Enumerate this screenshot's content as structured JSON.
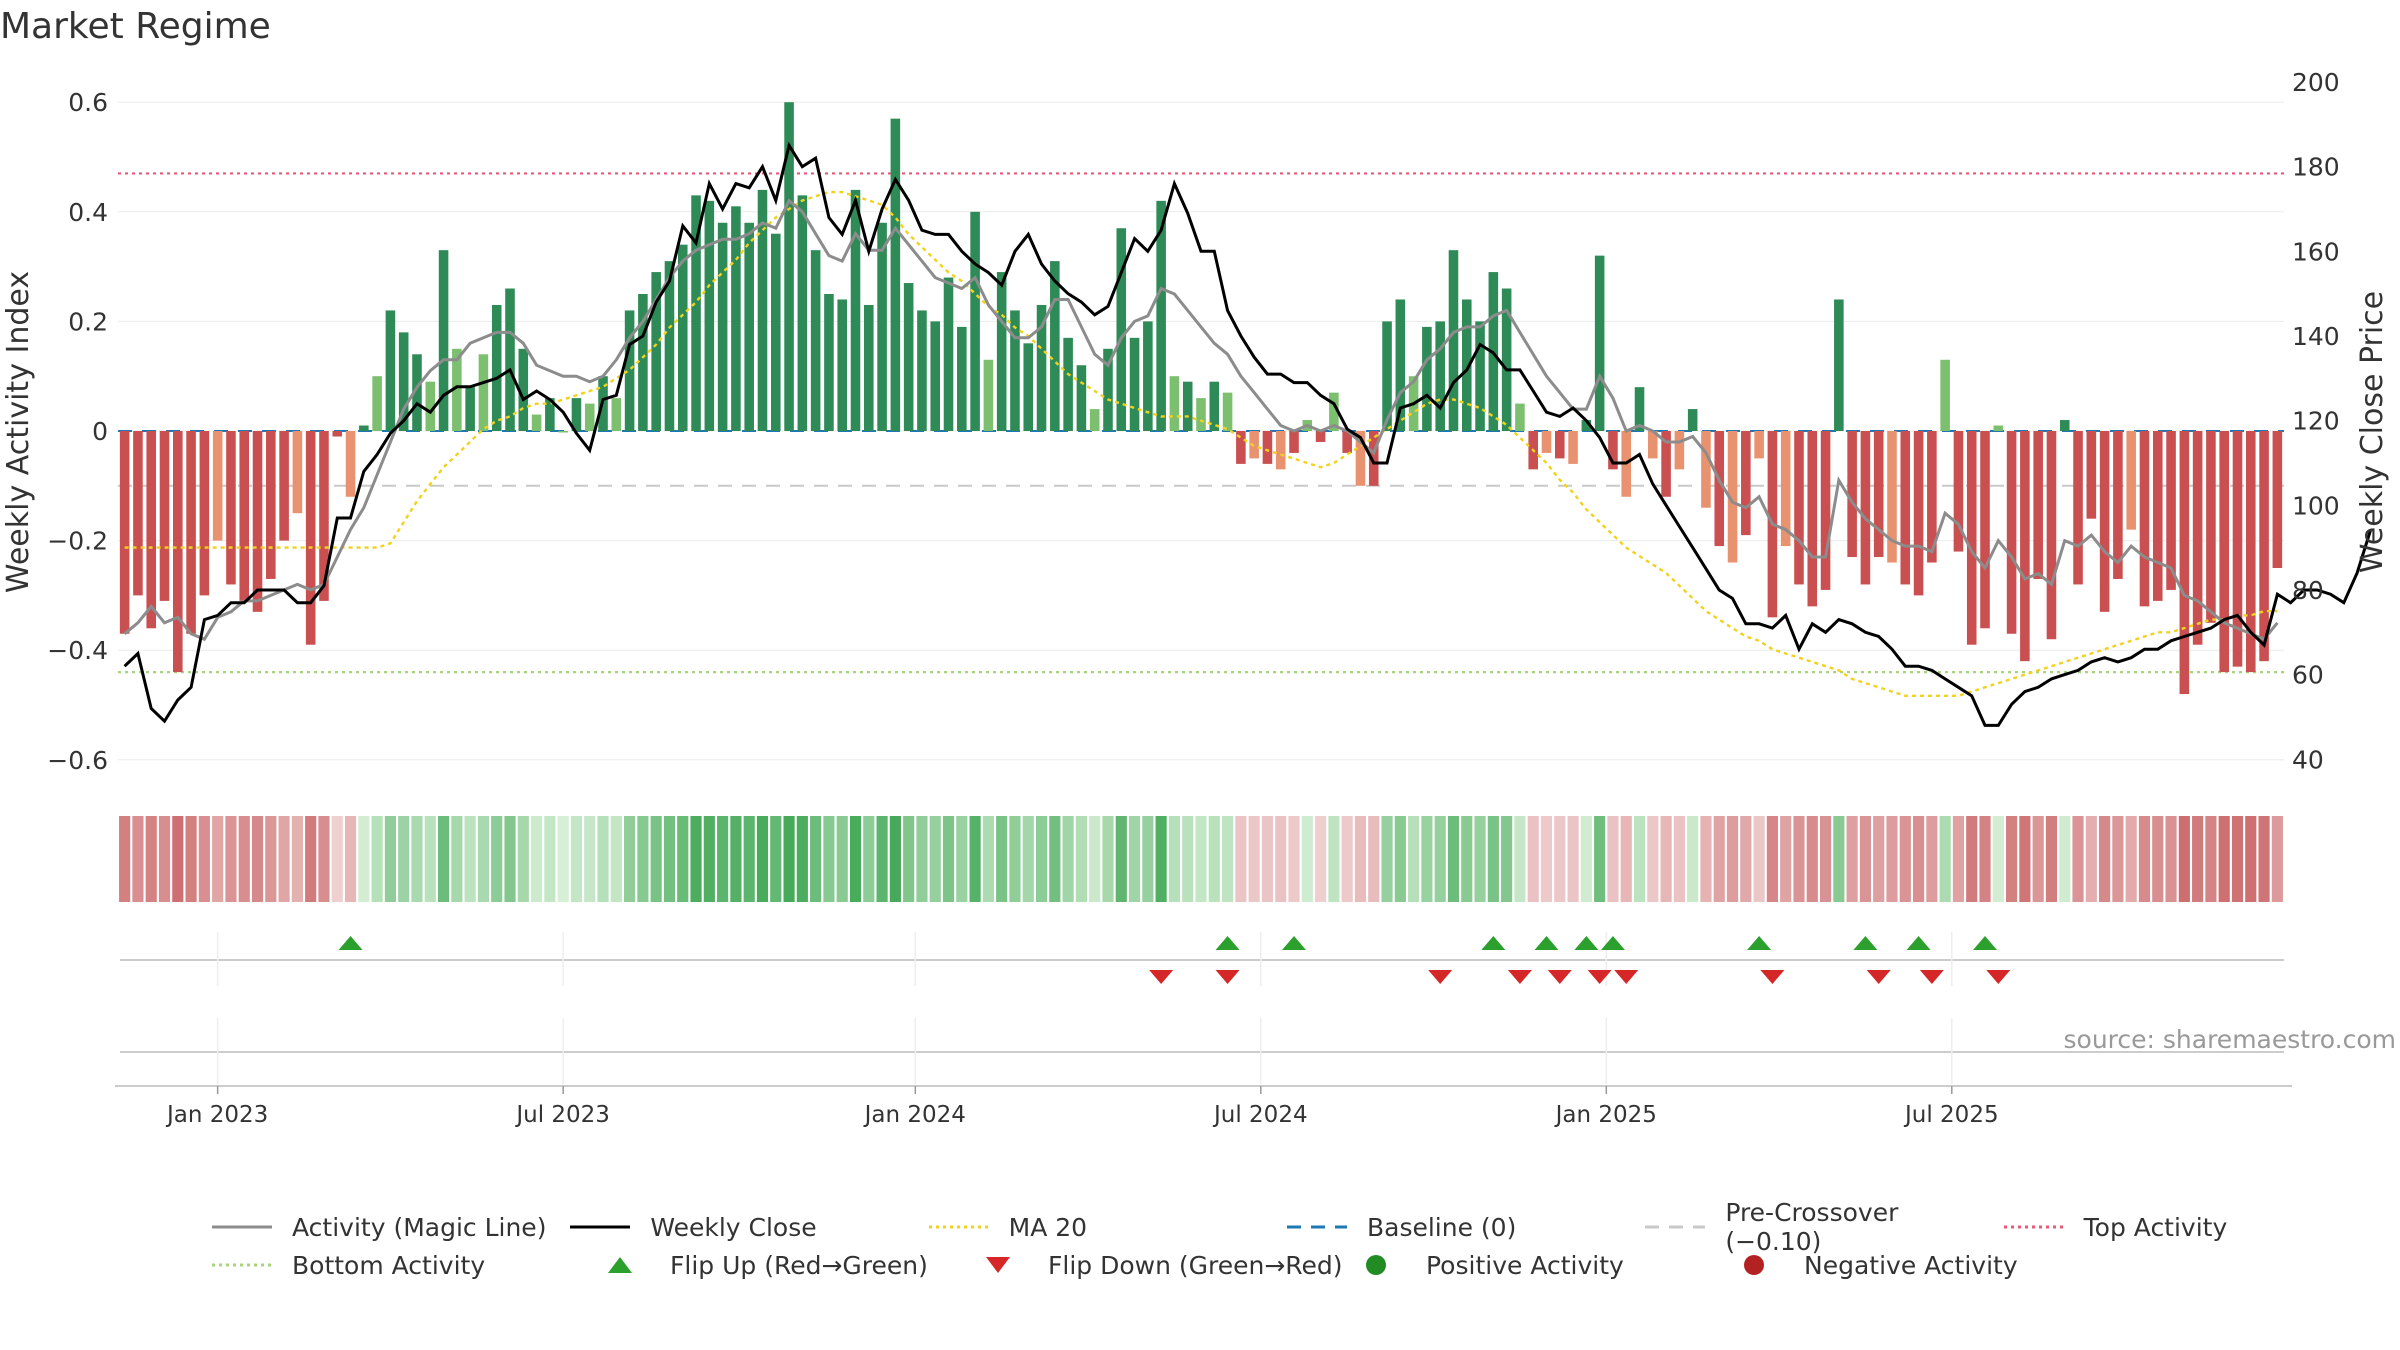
{
  "title": "Market Regime",
  "source": "source: sharemaestro.com",
  "chart_data": {
    "type": "bar",
    "left_axis": {
      "label": "Weekly Activity Index",
      "range": [
        -0.62,
        0.62
      ],
      "ticks": [
        0.6,
        0.4,
        0.2,
        0,
        -0.2,
        -0.4,
        -0.6
      ],
      "tick_labels": [
        "0.6",
        "0.4",
        "0.2",
        "0",
        "−0.2",
        "−0.4",
        "−0.6"
      ]
    },
    "right_axis": {
      "label": "Weekly Close Price",
      "range": [
        37,
        200
      ],
      "ticks": [
        200,
        180,
        160,
        140,
        120,
        100,
        80,
        60,
        40
      ],
      "tick_labels": [
        "200",
        "180",
        "160",
        "140",
        "120",
        "100",
        "80",
        "60",
        "40"
      ]
    },
    "x_axis": {
      "tick_labels": [
        "Jan 2023",
        "Jul 2023",
        "Jan 2024",
        "Jul 2024",
        "Jan 2025",
        "Jul 2025"
      ],
      "tick_weeks": [
        7,
        33,
        59.5,
        85.5,
        111.5,
        137.5
      ]
    },
    "thresholds": {
      "top_activity": 0.47,
      "pre_crossover": -0.1,
      "bottom_activity": -0.44,
      "baseline": 0
    },
    "activity_weeks": [
      -0.37,
      -0.3,
      -0.36,
      -0.31,
      -0.44,
      -0.37,
      -0.3,
      -0.2,
      -0.28,
      -0.31,
      -0.33,
      -0.27,
      -0.2,
      -0.15,
      -0.39,
      -0.31,
      -0.01,
      -0.12,
      0.01,
      0.1,
      0.22,
      0.18,
      0.14,
      0.09,
      0.33,
      0.15,
      0.08,
      0.14,
      0.23,
      0.26,
      0.15,
      0.03,
      0.06,
      0.0,
      0.06,
      0.05,
      0.1,
      0.06,
      0.22,
      0.25,
      0.29,
      0.31,
      0.34,
      0.43,
      0.42,
      0.38,
      0.41,
      0.38,
      0.44,
      0.36,
      0.6,
      0.43,
      0.33,
      0.25,
      0.24,
      0.44,
      0.23,
      0.38,
      0.57,
      0.27,
      0.22,
      0.2,
      0.28,
      0.19,
      0.4,
      0.13,
      0.29,
      0.22,
      0.16,
      0.23,
      0.31,
      0.17,
      0.12,
      0.04,
      0.15,
      0.37,
      0.17,
      0.2,
      0.42,
      0.1,
      0.09,
      0.06,
      0.09,
      0.07,
      -0.06,
      -0.05,
      -0.06,
      -0.07,
      -0.04,
      0.02,
      -0.02,
      0.07,
      -0.04,
      -0.1,
      -0.1,
      0.2,
      0.24,
      0.1,
      0.19,
      0.2,
      0.33,
      0.24,
      0.2,
      0.29,
      0.26,
      0.05,
      -0.07,
      -0.04,
      -0.05,
      -0.06,
      0.02,
      0.32,
      -0.07,
      -0.12,
      0.08,
      -0.05,
      -0.12,
      -0.07,
      0.04,
      -0.14,
      -0.21,
      -0.24,
      -0.19,
      -0.05,
      -0.34,
      -0.21,
      -0.28,
      -0.32,
      -0.29,
      0.24,
      -0.23,
      -0.28,
      -0.23,
      -0.24,
      -0.28,
      -0.3,
      -0.24,
      0.13,
      -0.22,
      -0.39,
      -0.36,
      0.01,
      -0.37,
      -0.42,
      -0.27,
      -0.38,
      0.02,
      -0.28,
      -0.16,
      -0.33,
      -0.27,
      -0.18,
      -0.32,
      -0.31,
      -0.29,
      -0.48,
      -0.39,
      -0.35,
      -0.44,
      -0.43,
      -0.44,
      -0.42,
      -0.25
    ],
    "series": [
      {
        "name": "Activity (Magic Line)",
        "color": "#8c8c8c",
        "values": [
          -0.37,
          -0.35,
          -0.32,
          -0.35,
          -0.34,
          -0.37,
          -0.38,
          -0.34,
          -0.33,
          -0.31,
          -0.31,
          -0.3,
          -0.29,
          -0.28,
          -0.29,
          -0.28,
          -0.23,
          -0.18,
          -0.14,
          -0.08,
          -0.02,
          0.04,
          0.08,
          0.11,
          0.13,
          0.13,
          0.16,
          0.17,
          0.18,
          0.18,
          0.16,
          0.12,
          0.11,
          0.1,
          0.1,
          0.09,
          0.1,
          0.13,
          0.17,
          0.2,
          0.24,
          0.28,
          0.31,
          0.33,
          0.34,
          0.35,
          0.35,
          0.36,
          0.38,
          0.37,
          0.42,
          0.4,
          0.36,
          0.32,
          0.31,
          0.36,
          0.33,
          0.33,
          0.37,
          0.34,
          0.31,
          0.28,
          0.27,
          0.26,
          0.28,
          0.23,
          0.2,
          0.17,
          0.17,
          0.19,
          0.24,
          0.24,
          0.19,
          0.14,
          0.12,
          0.17,
          0.2,
          0.21,
          0.26,
          0.25,
          0.22,
          0.19,
          0.16,
          0.14,
          0.1,
          0.07,
          0.04,
          0.01,
          0.0,
          0.01,
          0.0,
          0.01,
          0.0,
          -0.02,
          -0.04,
          0.02,
          0.07,
          0.09,
          0.13,
          0.15,
          0.18,
          0.19,
          0.19,
          0.21,
          0.22,
          0.18,
          0.14,
          0.1,
          0.07,
          0.04,
          0.04,
          0.1,
          0.06,
          0.0,
          0.01,
          0.0,
          -0.02,
          -0.02,
          -0.01,
          -0.04,
          -0.09,
          -0.13,
          -0.14,
          -0.12,
          -0.17,
          -0.18,
          -0.2,
          -0.23,
          -0.23,
          -0.09,
          -0.13,
          -0.16,
          -0.18,
          -0.2,
          -0.21,
          -0.21,
          -0.22,
          -0.15,
          -0.17,
          -0.22,
          -0.25,
          -0.2,
          -0.23,
          -0.27,
          -0.26,
          -0.28,
          -0.2,
          -0.21,
          -0.19,
          -0.22,
          -0.24,
          -0.21,
          -0.23,
          -0.24,
          -0.25,
          -0.3,
          -0.31,
          -0.33,
          -0.35,
          -0.36,
          -0.37,
          -0.38,
          -0.35
        ]
      },
      {
        "name": "Weekly Close",
        "color": "#000000",
        "values": [
          62,
          65,
          52,
          49,
          54,
          57,
          73,
          74,
          77,
          77,
          80,
          80,
          80,
          77,
          77,
          81,
          97,
          97,
          108,
          112,
          117,
          120,
          124,
          122,
          126,
          128,
          128,
          129,
          130,
          132,
          125,
          127,
          125,
          122,
          117,
          113,
          125,
          126,
          138,
          140,
          148,
          153,
          166,
          162,
          176,
          170,
          176,
          175,
          180,
          172,
          185,
          180,
          182,
          168,
          164,
          172,
          160,
          170,
          177,
          172,
          165,
          164,
          164,
          160,
          157,
          155,
          152,
          160,
          164,
          157,
          153,
          150,
          148,
          145,
          147,
          155,
          163,
          160,
          165,
          176,
          169,
          160,
          160,
          146,
          140,
          135,
          131,
          131,
          129,
          129,
          126,
          124,
          118,
          116,
          110,
          110,
          123,
          124,
          126,
          123,
          129,
          132,
          138,
          136,
          132,
          132,
          127,
          122,
          121,
          123,
          120,
          116,
          110,
          110,
          112,
          105,
          100,
          95,
          90,
          85,
          80,
          78,
          72,
          72,
          71,
          74,
          66,
          72,
          70,
          73,
          72,
          70,
          69,
          66,
          62,
          62,
          61,
          59,
          57,
          55,
          48,
          48,
          53,
          56,
          57,
          59,
          60,
          61,
          63,
          64,
          63,
          64,
          66,
          66,
          68,
          69,
          70,
          71,
          73,
          74,
          70,
          67,
          79,
          77,
          80,
          80,
          79,
          77,
          84,
          94
        ]
      },
      {
        "name": "MA 20",
        "color": "#f1d21c",
        "values": [
          90,
          90,
          90,
          90,
          90,
          90,
          90,
          90,
          90,
          90,
          90,
          90,
          90,
          90,
          90,
          90,
          90,
          90,
          90,
          90,
          91,
          96,
          101,
          105,
          109,
          112,
          115,
          118,
          120,
          121,
          123,
          124,
          124,
          125,
          126,
          127,
          128,
          130,
          132,
          135,
          138,
          142,
          145,
          148,
          152,
          155,
          158,
          162,
          165,
          168,
          170,
          172,
          173,
          174,
          174,
          173,
          172,
          171,
          168,
          164,
          161,
          158,
          155,
          153,
          150,
          147,
          145,
          142,
          140,
          137,
          134,
          131,
          129,
          127,
          125,
          124,
          123,
          122,
          121,
          121,
          121,
          120,
          119,
          118,
          116,
          114,
          113,
          112,
          111,
          110,
          109,
          110,
          112,
          114,
          116,
          118,
          120,
          122,
          124,
          125,
          125,
          124,
          123,
          121,
          119,
          116,
          113,
          110,
          106,
          103,
          99,
          96,
          93,
          90,
          88,
          86,
          84,
          81,
          78,
          75,
          73,
          71,
          69,
          68,
          66,
          65,
          64,
          63,
          62,
          61,
          59,
          58,
          57,
          56,
          55,
          55,
          55,
          55,
          55,
          56,
          57,
          58,
          59,
          60,
          61,
          62,
          63,
          64,
          65,
          66,
          67,
          68,
          69,
          70,
          70,
          71,
          72,
          73,
          73,
          74,
          74,
          75,
          75
        ]
      },
      {
        "name": "Baseline (0)",
        "color": "#1f77b4"
      },
      {
        "name": "Pre-Crossover (−0.10)",
        "color": "#bdbdbd"
      },
      {
        "name": "Top Activity",
        "color": "#e8597a"
      },
      {
        "name": "Bottom Activity",
        "color": "#a8d47e"
      }
    ],
    "flip_up_weeks": [
      17,
      83,
      88,
      103,
      107,
      110,
      112,
      123,
      131,
      135,
      140
    ],
    "flip_down_weeks": [
      78,
      83,
      99,
      105,
      108,
      111,
      113,
      124,
      132,
      136,
      141
    ],
    "colors": {
      "positive_strong": "#2e8b57",
      "positive_light": "#7cbf6e",
      "negative_strong": "#c94f50",
      "negative_light": "#e8926f",
      "flip_up": "#2ca02c",
      "flip_down": "#d62728",
      "positive_dot": "#238b23",
      "negative_dot": "#b22222"
    },
    "legend": [
      {
        "label": "Activity (Magic Line)",
        "kind": "line-solid",
        "color": "#8c8c8c"
      },
      {
        "label": "Weekly Close",
        "kind": "line-solid",
        "color": "#000000"
      },
      {
        "label": "MA 20",
        "kind": "line-dotted",
        "color": "#f1d21c"
      },
      {
        "label": "Baseline (0)",
        "kind": "line-dashed",
        "color": "#1f77b4"
      },
      {
        "label": "Pre-Crossover (−0.10)",
        "kind": "line-dashed",
        "color": "#c8c8c8"
      },
      {
        "label": "Top Activity",
        "kind": "line-dotted",
        "color": "#e8597a"
      },
      {
        "label": "Bottom Activity",
        "kind": "line-dotted",
        "color": "#a8d47e"
      },
      {
        "label": "Flip Up (Red→Green)",
        "kind": "triangle-up",
        "color": "#2ca02c"
      },
      {
        "label": "Flip Down (Green→Red)",
        "kind": "triangle-down",
        "color": "#d62728"
      },
      {
        "label": "Positive Activity",
        "kind": "dot",
        "color": "#238b23"
      },
      {
        "label": "Negative Activity",
        "kind": "dot",
        "color": "#b22222"
      }
    ],
    "legend_position": "bottom"
  }
}
